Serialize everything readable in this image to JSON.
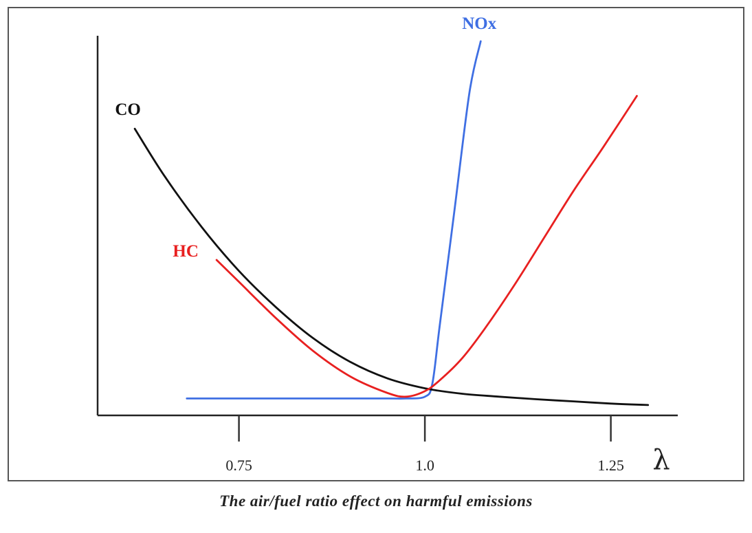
{
  "caption": "The air/fuel ratio effect on harmful emissions",
  "chart_data": {
    "type": "line",
    "xlabel": "λ",
    "ylabel": "",
    "xlim": [
      0.56,
      1.34
    ],
    "ylim": [
      0,
      100
    ],
    "xticks": [
      {
        "value": 0.75,
        "label": "0.75"
      },
      {
        "value": 1.0,
        "label": "1.0"
      },
      {
        "value": 1.25,
        "label": "1.25"
      }
    ],
    "grid": false,
    "series": [
      {
        "name": "CO",
        "color": "#111111",
        "x": [
          0.61,
          0.65,
          0.7,
          0.75,
          0.8,
          0.85,
          0.9,
          0.95,
          1.0,
          1.05,
          1.1,
          1.15,
          1.2,
          1.25,
          1.3
        ],
        "y": [
          76,
          63,
          49,
          37,
          27,
          18.5,
          12,
          7.5,
          4.8,
          3.3,
          2.5,
          1.8,
          1.2,
          0.6,
          0.2
        ]
      },
      {
        "name": "HC",
        "color": "#e82020",
        "x": [
          0.72,
          0.75,
          0.8,
          0.85,
          0.9,
          0.95,
          0.975,
          1.0,
          1.02,
          1.05,
          1.08,
          1.12,
          1.16,
          1.2,
          1.24,
          1.285
        ],
        "y": [
          40,
          34,
          24,
          15,
          8,
          3.5,
          2.5,
          4,
          7,
          13,
          21,
          33,
          46,
          59,
          71,
          85
        ]
      },
      {
        "name": "NOx",
        "color": "#3f6fe3",
        "x": [
          0.68,
          0.75,
          0.8,
          0.85,
          0.9,
          0.95,
          0.975,
          1.0,
          1.01,
          1.02,
          1.04,
          1.06,
          1.075
        ],
        "y": [
          2,
          2,
          2,
          2,
          2,
          2,
          2,
          2.5,
          6,
          22,
          54,
          86,
          100
        ]
      }
    ],
    "annotations": [
      {
        "text": "CO",
        "color": "#111111"
      },
      {
        "text": "HC",
        "color": "#e82020"
      },
      {
        "text": "NOx",
        "color": "#3f6fe3"
      }
    ]
  }
}
